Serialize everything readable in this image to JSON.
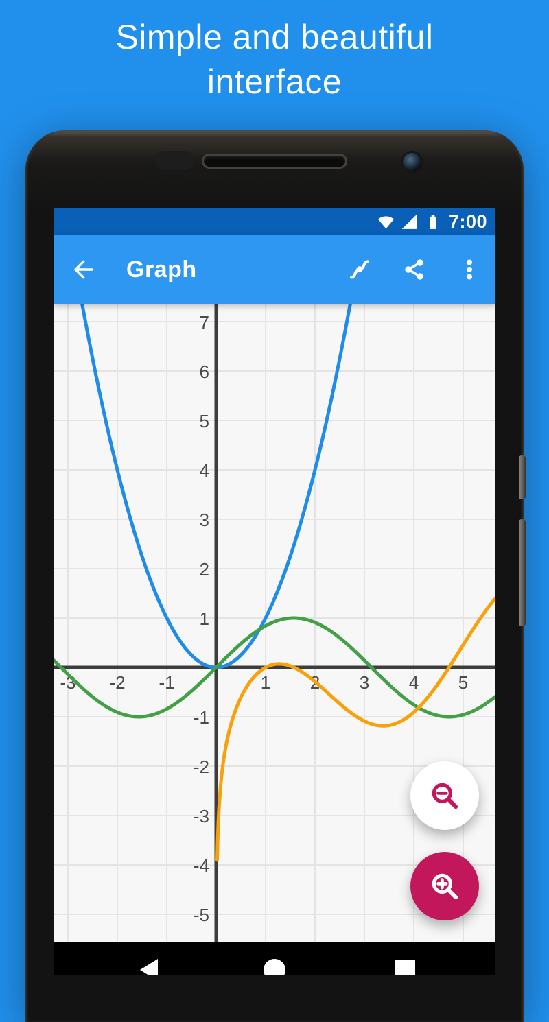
{
  "page": {
    "title": "Simple and beautiful interface",
    "background": "#2190ed"
  },
  "phone": {
    "status_bar": {
      "background": "#0a5fb6",
      "time": "7:00",
      "icons": [
        "wifi-icon",
        "cellular-signal-icon",
        "battery-icon"
      ]
    },
    "app_bar": {
      "background": "#2e97f2",
      "title": "Graph",
      "icons": [
        "arrow-left-icon",
        "function-curve-icon",
        "share-icon",
        "overflow-dots-icon"
      ]
    },
    "nav_bar": {
      "background": "#000000",
      "icon_color": "#ffffff",
      "items": [
        "back",
        "home",
        "recents"
      ]
    }
  },
  "fabs": {
    "zoom_out": {
      "icon": "magnifier-minus",
      "bg": "#ffffff",
      "fg": "#c2185b"
    },
    "zoom_in": {
      "icon": "magnifier-plus",
      "bg": "#c2185b",
      "fg": "#ffffff"
    }
  },
  "chart_data": {
    "type": "line",
    "title": "",
    "xlabel": "",
    "ylabel": "",
    "x_range": [
      -3.29,
      5.65
    ],
    "y_range": [
      -5.57,
      7.36
    ],
    "grid_step": 1,
    "grid": true,
    "legend": false,
    "x_ticks": [
      -3,
      -2,
      -1,
      1,
      2,
      3,
      4,
      5
    ],
    "y_ticks": [
      7,
      6,
      5,
      4,
      3,
      2,
      1,
      -1,
      -2,
      -3,
      -4,
      -5
    ],
    "background": "#f7f7f7",
    "grid_color": "#e4e4e4",
    "axis_color": "#3d3d3d",
    "label_color": "#4a4a4a",
    "series": [
      {
        "name": "parabola",
        "expr": "x^2",
        "fn": "square",
        "color": "#1f8ceb",
        "width": 5
      },
      {
        "name": "sine",
        "expr": "sin(x)",
        "fn": "sin",
        "color": "#43a047",
        "width": 5
      },
      {
        "name": "log-cosine",
        "expr": "ln(x)*cos(x)",
        "fn": "lncos",
        "color": "#f9a10a",
        "width": 5,
        "domain": [
          0.0202,
          5.65
        ]
      }
    ]
  }
}
